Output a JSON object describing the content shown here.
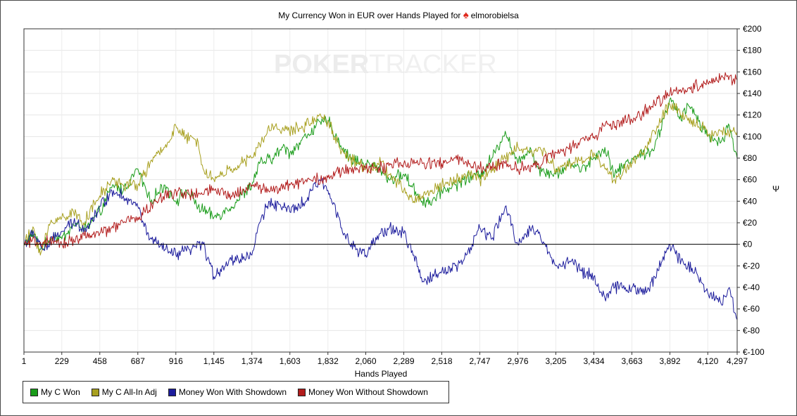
{
  "chart_data": {
    "type": "line",
    "title_prefix": "My Currency Won in EUR over Hands Played for",
    "player": "elmorobielsa",
    "watermark": {
      "poker": "POKER",
      "tracker": "TRACKER"
    },
    "xlabel": "Hands Played",
    "ylabel": "Ψ",
    "xlim": [
      1,
      4297
    ],
    "ylim": [
      -100,
      200
    ],
    "grid": true,
    "x_ticks": [
      1,
      229,
      458,
      687,
      916,
      1145,
      1374,
      1603,
      1832,
      2060,
      2289,
      2518,
      2747,
      2976,
      3205,
      3434,
      3663,
      3892,
      4120,
      4297
    ],
    "x_tick_labels": [
      "1",
      "229",
      "458",
      "687",
      "916",
      "1,145",
      "1,374",
      "1,603",
      "1,832",
      "2,060",
      "2,289",
      "2,518",
      "2,747",
      "2,976",
      "3,205",
      "3,434",
      "3,663",
      "3,892",
      "4,120",
      "4,297"
    ],
    "y_ticks": [
      -100,
      -80,
      -60,
      -40,
      -20,
      0,
      20,
      40,
      60,
      80,
      100,
      120,
      140,
      160,
      180,
      200
    ],
    "y_tick_labels": [
      "€-100",
      "€-80",
      "€-60",
      "€-40",
      "€-20",
      "€0",
      "€20",
      "€40",
      "€60",
      "€80",
      "€100",
      "€120",
      "€140",
      "€160",
      "€180",
      "€200"
    ],
    "legend_position": "bottom-left",
    "series": [
      {
        "name": "My C Won",
        "color": "#1a9c1a",
        "x": [
          1,
          60,
          100,
          180,
          229,
          300,
          380,
          458,
          540,
          600,
          687,
          760,
          850,
          916,
          980,
          1050,
          1145,
          1200,
          1250,
          1374,
          1420,
          1500,
          1560,
          1603,
          1700,
          1760,
          1832,
          1900,
          1960,
          2060,
          2150,
          2200,
          2289,
          2400,
          2460,
          2518,
          2600,
          2650,
          2747,
          2820,
          2900,
          2976,
          3050,
          3100,
          3205,
          3300,
          3360,
          3434,
          3500,
          3560,
          3663,
          3750,
          3800,
          3892,
          3960,
          4000,
          4050,
          4120,
          4200,
          4250,
          4297
        ],
        "y": [
          0,
          10,
          -5,
          8,
          5,
          18,
          15,
          30,
          55,
          50,
          70,
          40,
          55,
          40,
          50,
          35,
          25,
          30,
          35,
          55,
          75,
          80,
          90,
          85,
          100,
          110,
          115,
          95,
          80,
          75,
          70,
          60,
          65,
          40,
          40,
          50,
          55,
          60,
          65,
          80,
          105,
          75,
          90,
          70,
          65,
          75,
          70,
          80,
          90,
          65,
          80,
          85,
          90,
          135,
          115,
          130,
          120,
          100,
          95,
          110,
          80
        ]
      },
      {
        "name": "My C All-In Adj",
        "color": "#a8a020",
        "x": [
          1,
          60,
          100,
          160,
          229,
          300,
          360,
          458,
          540,
          600,
          687,
          760,
          850,
          916,
          960,
          1050,
          1080,
          1145,
          1250,
          1374,
          1450,
          1500,
          1600,
          1700,
          1780,
          1832,
          1900,
          1960,
          2060,
          2150,
          2200,
          2289,
          2350,
          2400,
          2518,
          2600,
          2700,
          2747,
          2820,
          2900,
          2976,
          3050,
          3100,
          3205,
          3300,
          3400,
          3434,
          3500,
          3560,
          3663,
          3750,
          3800,
          3892,
          3960,
          4000,
          4100,
          4120,
          4200,
          4297
        ],
        "y": [
          0,
          15,
          -10,
          20,
          25,
          30,
          20,
          45,
          60,
          55,
          55,
          75,
          90,
          110,
          100,
          95,
          70,
          60,
          70,
          80,
          100,
          110,
          105,
          110,
          120,
          115,
          90,
          80,
          70,
          75,
          65,
          50,
          40,
          45,
          55,
          60,
          65,
          60,
          70,
          80,
          90,
          85,
          90,
          70,
          75,
          80,
          85,
          70,
          60,
          75,
          90,
          105,
          130,
          120,
          115,
          110,
          100,
          105,
          105
        ]
      },
      {
        "name": "Money Won With Showdown",
        "color": "#1c1c9c",
        "x": [
          1,
          60,
          120,
          200,
          229,
          300,
          380,
          458,
          540,
          600,
          687,
          720,
          760,
          850,
          916,
          1000,
          1080,
          1145,
          1200,
          1250,
          1374,
          1420,
          1480,
          1560,
          1603,
          1700,
          1780,
          1832,
          1900,
          1960,
          2060,
          2150,
          2200,
          2289,
          2350,
          2400,
          2518,
          2600,
          2650,
          2747,
          2820,
          2900,
          2976,
          3050,
          3100,
          3205,
          3300,
          3360,
          3434,
          3500,
          3560,
          3663,
          3750,
          3800,
          3892,
          3960,
          4000,
          4050,
          4120,
          4200,
          4250,
          4297
        ],
        "y": [
          0,
          10,
          -5,
          8,
          12,
          20,
          15,
          35,
          50,
          45,
          35,
          20,
          5,
          -5,
          -10,
          -5,
          0,
          -30,
          -20,
          -15,
          -10,
          20,
          40,
          35,
          30,
          40,
          60,
          50,
          25,
          0,
          -10,
          10,
          15,
          10,
          -10,
          -35,
          -25,
          -20,
          -15,
          15,
          5,
          35,
          0,
          15,
          10,
          -20,
          -15,
          -25,
          -30,
          -50,
          -40,
          -40,
          -45,
          -30,
          0,
          -15,
          -20,
          -25,
          -45,
          -55,
          -40,
          -70
        ]
      },
      {
        "name": "Money Won Without Showdown",
        "color": "#b21c1c",
        "x": [
          1,
          100,
          229,
          300,
          458,
          600,
          687,
          800,
          916,
          1000,
          1145,
          1250,
          1374,
          1500,
          1603,
          1700,
          1832,
          1960,
          2060,
          2200,
          2289,
          2400,
          2518,
          2600,
          2747,
          2900,
          2976,
          3100,
          3205,
          3300,
          3434,
          3500,
          3663,
          3800,
          3892,
          4000,
          4120,
          4200,
          4297
        ],
        "y": [
          0,
          2,
          0,
          5,
          10,
          20,
          25,
          40,
          50,
          45,
          50,
          45,
          55,
          50,
          55,
          60,
          62,
          70,
          70,
          73,
          75,
          75,
          75,
          80,
          70,
          75,
          70,
          75,
          85,
          90,
          100,
          110,
          115,
          130,
          140,
          145,
          150,
          155,
          153
        ]
      }
    ]
  }
}
